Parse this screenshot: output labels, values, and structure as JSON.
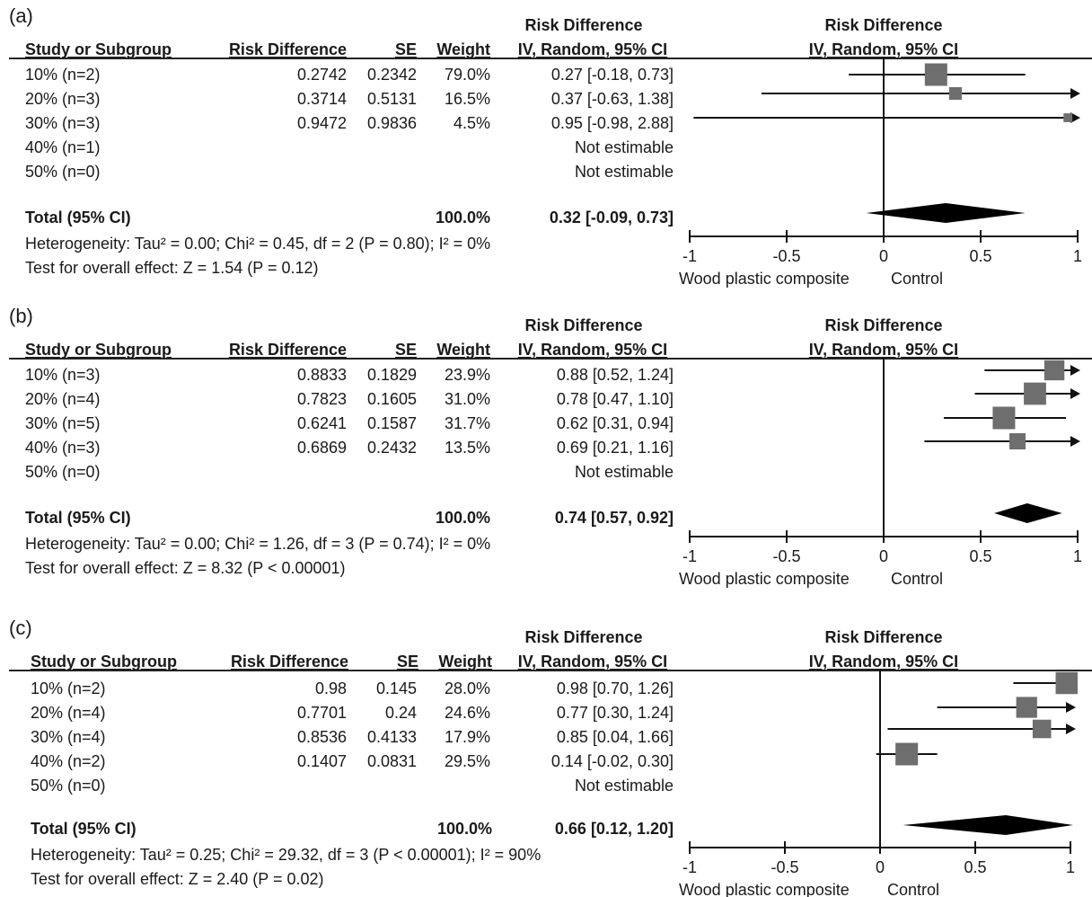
{
  "column_headers": {
    "group_header": "Risk Difference",
    "study": "Study or Subgroup",
    "rd": "Risk Difference",
    "se": "SE",
    "weight": "Weight",
    "ci": "IV, Random, 95% CI"
  },
  "plot_header": {
    "line1": "Risk Difference",
    "line2": "IV, Random, 95% CI"
  },
  "axis": {
    "ticks": [
      "-1",
      "-0.5",
      "0",
      "0.5",
      "1"
    ],
    "favours_left": "Wood plastic composite",
    "favours_right": "Control"
  },
  "panels": [
    {
      "label": "(a)",
      "rows": [
        {
          "study": "10% (n=2)",
          "rd": "0.2742",
          "se": "0.2342",
          "weight": "79.0%",
          "ci": "0.27 [-0.18, 0.73]"
        },
        {
          "study": "20% (n=3)",
          "rd": "0.3714",
          "se": "0.5131",
          "weight": "16.5%",
          "ci": "0.37 [-0.63, 1.38]"
        },
        {
          "study": "30% (n=3)",
          "rd": "0.9472",
          "se": "0.9836",
          "weight": "4.5%",
          "ci": "0.95 [-0.98, 2.88]"
        },
        {
          "study": "40% (n=1)",
          "rd": "",
          "se": "",
          "weight": "",
          "ci": "Not estimable"
        },
        {
          "study": "50% (n=0)",
          "rd": "",
          "se": "",
          "weight": "",
          "ci": "Not estimable"
        }
      ],
      "total": {
        "label": "Total (95% CI)",
        "weight": "100.0%",
        "ci": "0.32 [-0.09, 0.73]"
      },
      "heterogeneity": "Heterogeneity: Tau² = 0.00; Chi² = 0.45, df = 2 (P = 0.80); I² = 0%",
      "overall": "Test for overall effect: Z = 1.54 (P = 0.12)"
    },
    {
      "label": "(b)",
      "rows": [
        {
          "study": "10% (n=3)",
          "rd": "0.8833",
          "se": "0.1829",
          "weight": "23.9%",
          "ci": "0.88 [0.52, 1.24]"
        },
        {
          "study": "20% (n=4)",
          "rd": "0.7823",
          "se": "0.1605",
          "weight": "31.0%",
          "ci": "0.78 [0.47, 1.10]"
        },
        {
          "study": "30% (n=5)",
          "rd": "0.6241",
          "se": "0.1587",
          "weight": "31.7%",
          "ci": "0.62 [0.31, 0.94]"
        },
        {
          "study": "40% (n=3)",
          "rd": "0.6869",
          "se": "0.2432",
          "weight": "13.5%",
          "ci": "0.69 [0.21, 1.16]"
        },
        {
          "study": "50% (n=0)",
          "rd": "",
          "se": "",
          "weight": "",
          "ci": "Not estimable"
        }
      ],
      "total": {
        "label": "Total (95% CI)",
        "weight": "100.0%",
        "ci": "0.74 [0.57, 0.92]"
      },
      "heterogeneity": "Heterogeneity: Tau² = 0.00; Chi² = 1.26, df = 3 (P = 0.74); I² = 0%",
      "overall": "Test for overall effect: Z = 8.32 (P < 0.00001)"
    },
    {
      "label": "(c)",
      "rows": [
        {
          "study": "10% (n=2)",
          "rd": "0.98",
          "se": "0.145",
          "weight": "28.0%",
          "ci": "0.98 [0.70, 1.26]"
        },
        {
          "study": "20% (n=4)",
          "rd": "0.7701",
          "se": "0.24",
          "weight": "24.6%",
          "ci": "0.77 [0.30, 1.24]"
        },
        {
          "study": "30% (n=4)",
          "rd": "0.8536",
          "se": "0.4133",
          "weight": "17.9%",
          "ci": "0.85 [0.04, 1.66]"
        },
        {
          "study": "40% (n=2)",
          "rd": "0.1407",
          "se": "0.0831",
          "weight": "29.5%",
          "ci": "0.14 [-0.02, 0.30]"
        },
        {
          "study": "50% (n=0)",
          "rd": "",
          "se": "",
          "weight": "",
          "ci": "Not estimable"
        }
      ],
      "total": {
        "label": "Total (95% CI)",
        "weight": "100.0%",
        "ci": "0.66 [0.12, 1.20]"
      },
      "heterogeneity": "Heterogeneity: Tau² = 0.25; Chi² = 29.32, df = 3 (P < 0.00001); I² = 90%",
      "overall": "Test for overall effect: Z = 2.40 (P = 0.02)"
    }
  ],
  "chart_data": [
    {
      "type": "forest",
      "xlim": [
        -1,
        1
      ],
      "xticks": [
        -1,
        -0.5,
        0,
        0.5,
        1
      ],
      "studies": [
        {
          "name": "10% (n=2)",
          "estimate": 0.27,
          "lower": -0.18,
          "upper": 0.73,
          "weight": 79.0
        },
        {
          "name": "20% (n=3)",
          "estimate": 0.37,
          "lower": -0.63,
          "upper": 1.38,
          "weight": 16.5
        },
        {
          "name": "30% (n=3)",
          "estimate": 0.95,
          "lower": -0.98,
          "upper": 2.88,
          "weight": 4.5
        },
        {
          "name": "40% (n=1)",
          "estimate": null,
          "lower": null,
          "upper": null,
          "weight": null
        },
        {
          "name": "50% (n=0)",
          "estimate": null,
          "lower": null,
          "upper": null,
          "weight": null
        }
      ],
      "total": {
        "estimate": 0.32,
        "lower": -0.09,
        "upper": 0.73
      },
      "marker_color": "#6e6e6e",
      "diamond_color": "#000000"
    },
    {
      "type": "forest",
      "xlim": [
        -1,
        1
      ],
      "xticks": [
        -1,
        -0.5,
        0,
        0.5,
        1
      ],
      "studies": [
        {
          "name": "10% (n=3)",
          "estimate": 0.88,
          "lower": 0.52,
          "upper": 1.24,
          "weight": 23.9
        },
        {
          "name": "20% (n=4)",
          "estimate": 0.78,
          "lower": 0.47,
          "upper": 1.1,
          "weight": 31.0
        },
        {
          "name": "30% (n=5)",
          "estimate": 0.62,
          "lower": 0.31,
          "upper": 0.94,
          "weight": 31.7
        },
        {
          "name": "40% (n=3)",
          "estimate": 0.69,
          "lower": 0.21,
          "upper": 1.16,
          "weight": 13.5
        },
        {
          "name": "50% (n=0)",
          "estimate": null,
          "lower": null,
          "upper": null,
          "weight": null
        }
      ],
      "total": {
        "estimate": 0.74,
        "lower": 0.57,
        "upper": 0.92
      },
      "marker_color": "#6e6e6e",
      "diamond_color": "#000000"
    },
    {
      "type": "forest",
      "xlim": [
        -1,
        1
      ],
      "xticks": [
        -1,
        -0.5,
        0,
        0.5,
        1
      ],
      "studies": [
        {
          "name": "10% (n=2)",
          "estimate": 0.98,
          "lower": 0.7,
          "upper": 1.26,
          "weight": 28.0
        },
        {
          "name": "20% (n=4)",
          "estimate": 0.77,
          "lower": 0.3,
          "upper": 1.24,
          "weight": 24.6
        },
        {
          "name": "30% (n=4)",
          "estimate": 0.85,
          "lower": 0.04,
          "upper": 1.66,
          "weight": 17.9
        },
        {
          "name": "40% (n=2)",
          "estimate": 0.14,
          "lower": -0.02,
          "upper": 0.3,
          "weight": 29.5
        },
        {
          "name": "50% (n=0)",
          "estimate": null,
          "lower": null,
          "upper": null,
          "weight": null
        }
      ],
      "total": {
        "estimate": 0.66,
        "lower": 0.12,
        "upper": 1.2
      },
      "marker_color": "#6e6e6e",
      "diamond_color": "#000000"
    }
  ]
}
